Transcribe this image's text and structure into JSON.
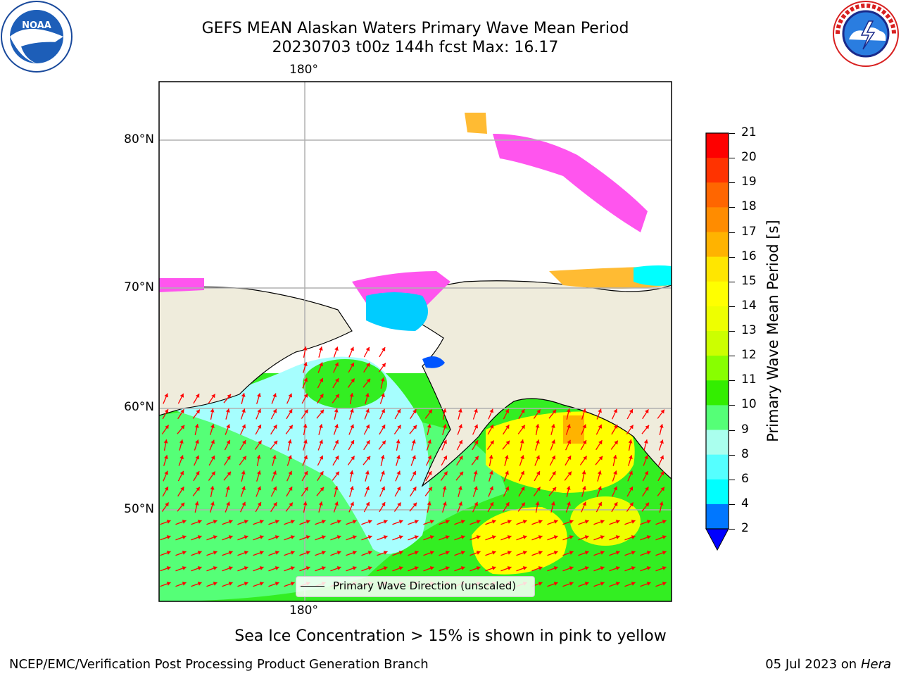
{
  "title": {
    "line1": "GEFS MEAN Alaskan Waters Primary Wave Mean Period",
    "line2": "20230703 t00z 144h fcst   Max: 16.17"
  },
  "logos": {
    "left": {
      "name": "NOAA",
      "ring_text": "NATIONAL OCEANIC AND ATMOSPHERIC ADMINISTRATION · U.S. DEPARTMENT OF COMMERCE"
    },
    "right": {
      "name": "NATIONAL WEATHER SERVICE"
    }
  },
  "map": {
    "lon_label_top": "180°",
    "lon_label_bottom": "180°",
    "lat_labels": [
      "80°N",
      "70°N",
      "60°N",
      "50°N"
    ],
    "legend_label": "Primary Wave Direction (unscaled)",
    "colors": {
      "land": "#efecdc",
      "ocean_green": "#33ee22",
      "ocean_cyan": "#a6fefe",
      "ocean_yellow": "#ffff00",
      "arrow": "#ff0000",
      "ice_pink": "#ff55ee",
      "ice_orange": "#ffbb33"
    }
  },
  "colorbar": {
    "title": "Primary Wave Mean Period [s]",
    "ticks": [
      "21",
      "20",
      "19",
      "18",
      "17",
      "16",
      "15",
      "14",
      "13",
      "12",
      "11",
      "10",
      "9",
      "8",
      "6",
      "4",
      "2"
    ],
    "colors_top_to_bottom": [
      "#fe0000",
      "#ff3300",
      "#ff6600",
      "#ff8c00",
      "#ffb300",
      "#ffe600",
      "#ffff00",
      "#eeff00",
      "#ccff00",
      "#88ff00",
      "#33ee00",
      "#55ff77",
      "#aaffee",
      "#55ffff",
      "#00ffff",
      "#0077ff",
      "#0000ff"
    ]
  },
  "footnote": "Sea Ice Concentration > 15% is shown in pink to yellow",
  "credit": "NCEP/EMC/Verification Post Processing Product Generation Branch",
  "date": {
    "text": "05 Jul 2023 on ",
    "machine": "Hera"
  }
}
